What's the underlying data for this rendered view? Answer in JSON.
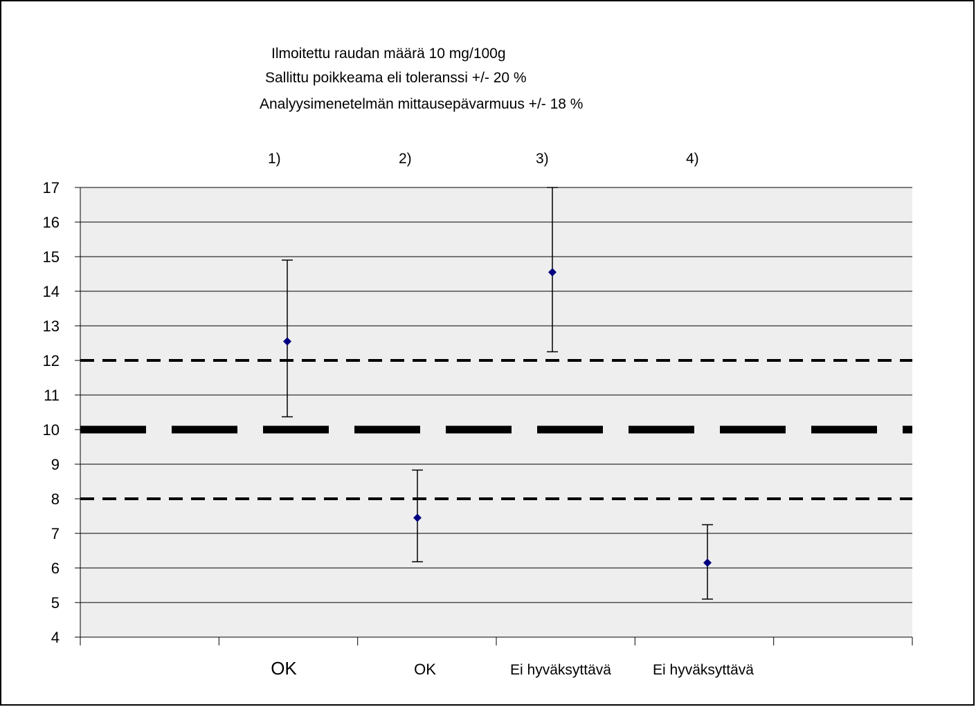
{
  "chart_data": {
    "type": "scatter",
    "header_lines": [
      "Ilmoitettu raudan määrä 10 mg/100g",
      "Sallittu poikkeama eli toleranssi +/- 20 %",
      "Analyysimenetelmän mittausepävarmuus +/- 18 %"
    ],
    "ylim": [
      4,
      17
    ],
    "yticks": [
      4,
      5,
      6,
      7,
      8,
      9,
      10,
      11,
      12,
      13,
      14,
      15,
      16,
      17
    ],
    "grid": true,
    "points": [
      {
        "label": "1)",
        "verdict": "OK",
        "value": 12.55,
        "err_low": 10.37,
        "err_high": 14.9
      },
      {
        "label": "2)",
        "verdict": "OK",
        "value": 7.45,
        "err_low": 6.18,
        "err_high": 8.83
      },
      {
        "label": "3)",
        "verdict": "Ei hyväksyttävä",
        "value": 14.55,
        "err_low": 12.25,
        "err_high": 17.0
      },
      {
        "label": "4)",
        "verdict": "Ei hyväksyttävä",
        "value": 6.15,
        "err_low": 5.1,
        "err_high": 7.25
      }
    ],
    "reference_lines": [
      {
        "value": 10,
        "role": "declared"
      },
      {
        "value": 12,
        "role": "upper tolerance"
      },
      {
        "value": 8,
        "role": "lower tolerance"
      }
    ],
    "colors": {
      "plot_area": "#eeeeee",
      "marker": "#00007f",
      "lines": "#000000"
    }
  }
}
